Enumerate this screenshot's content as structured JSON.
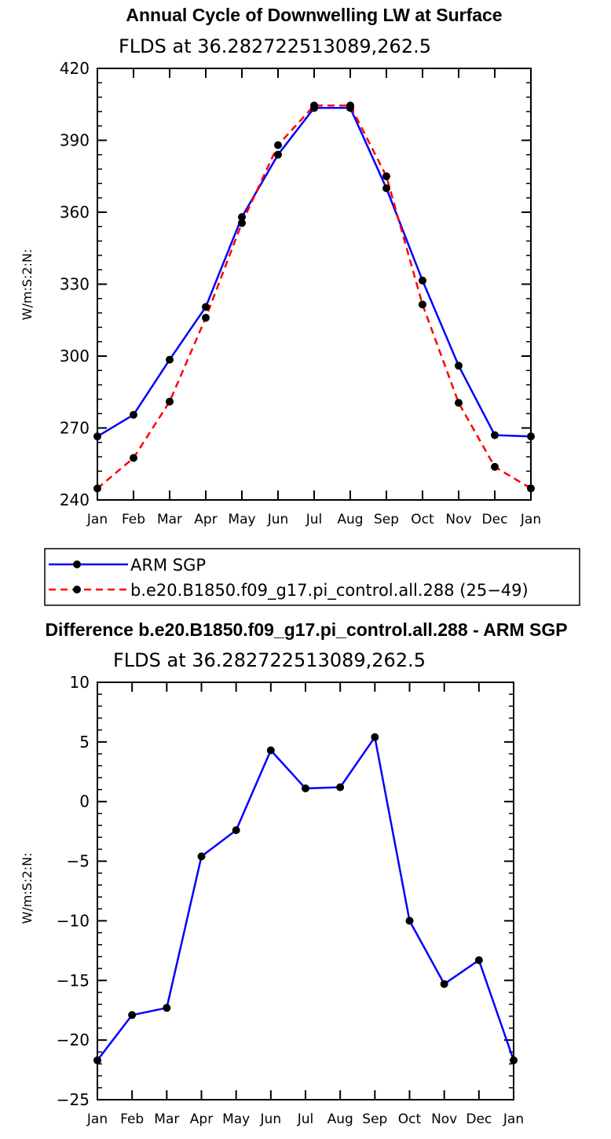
{
  "chart_data": [
    {
      "type": "line",
      "title": "Annual Cycle of Downwelling LW at Surface",
      "subtitle": "FLDS at 36.282722513089,262.5",
      "ylabel": "W/m:S:2:N:",
      "xlabel": "",
      "categories": [
        "Jan",
        "Feb",
        "Mar",
        "Apr",
        "May",
        "Jun",
        "Jul",
        "Aug",
        "Sep",
        "Oct",
        "Nov",
        "Dec",
        "Jan"
      ],
      "ylim": [
        240,
        420
      ],
      "yticks": [
        "240",
        "270",
        "300",
        "330",
        "360",
        "390",
        "420"
      ],
      "series": [
        {
          "name": "ARM SGP",
          "color": "#0000ff",
          "dash": "solid",
          "values": [
            266.5,
            275.5,
            298.5,
            320.5,
            358.0,
            384.0,
            403.5,
            403.5,
            370.0,
            331.5,
            296.0,
            267.0,
            266.5
          ]
        },
        {
          "name": "b.e20.B1850.f09_g17.pi_control.all.288 (25−49)",
          "color": "#ff0000",
          "dash": "dashed",
          "values": [
            244.8,
            257.5,
            281.0,
            316.0,
            355.5,
            388.0,
            404.5,
            404.5,
            375.0,
            321.5,
            280.5,
            253.8,
            244.8
          ]
        }
      ],
      "legend": "below"
    },
    {
      "type": "line",
      "title": "Difference b.e20.B1850.f09_g17.pi_control.all.288 - ARM SGP",
      "subtitle": "FLDS at 36.282722513089,262.5",
      "ylabel": "W/m:S:2:N:",
      "xlabel": "",
      "categories": [
        "Jan",
        "Feb",
        "Mar",
        "Apr",
        "May",
        "Jun",
        "Jul",
        "Aug",
        "Sep",
        "Oct",
        "Nov",
        "Dec",
        "Jan"
      ],
      "ylim": [
        -25,
        10
      ],
      "yticks": [
        "−25",
        "−20",
        "−15",
        "−10",
        "−5",
        "0",
        "5",
        "10"
      ],
      "series": [
        {
          "color": "#0000ff",
          "dash": "solid",
          "values": [
            -21.7,
            -17.9,
            -17.3,
            -4.6,
            -2.4,
            4.3,
            1.1,
            1.2,
            5.4,
            -10.0,
            -15.3,
            -13.3,
            -21.7
          ]
        }
      ]
    }
  ]
}
